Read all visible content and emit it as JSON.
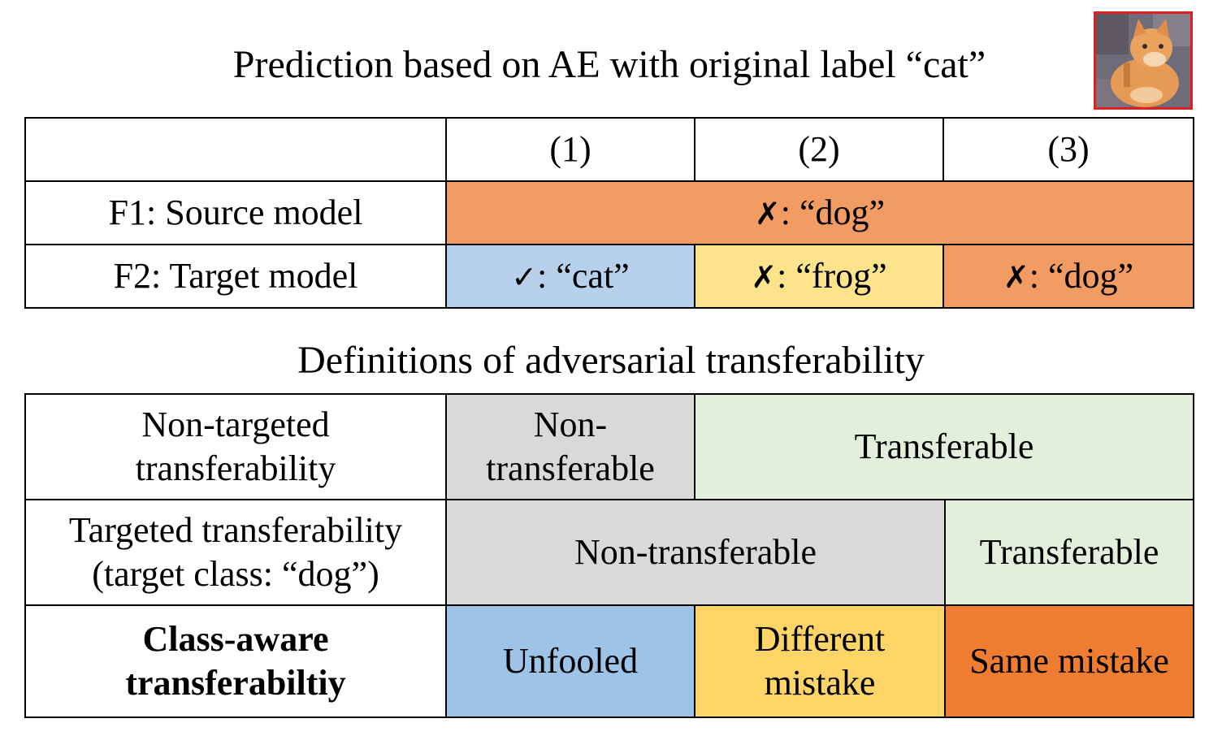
{
  "title_top": "Prediction based on AE with original label “cat”",
  "title_bottom": "Definitions of adversarial transferability",
  "image": {
    "icon": "cat-image",
    "border_color": "#e0201c"
  },
  "prediction_table": {
    "headers": [
      "(1)",
      "(2)",
      "(3)"
    ],
    "rows": [
      {
        "label": "F1: Source model",
        "cells": [
          {
            "mark": "✗",
            "text": ": “dog”",
            "color": "#f29b62"
          }
        ]
      },
      {
        "label": "F2: Target model",
        "cells": [
          {
            "mark": "✓",
            "text": ": “cat”",
            "color": "#b7d1ec"
          },
          {
            "mark": "✗",
            "text": ": “frog”",
            "color": "#fde38c"
          },
          {
            "mark": "✗",
            "text": ": “dog”",
            "color": "#f29b62"
          }
        ]
      }
    ]
  },
  "definitions_table": {
    "rows": [
      {
        "label_lines": [
          "Non-targeted",
          "transferability"
        ],
        "cells": [
          {
            "lines": [
              "Non-",
              "transferable"
            ],
            "color": "#d9d9d9"
          },
          {
            "lines": [
              "Transferable"
            ],
            "color": "#e2efda"
          }
        ]
      },
      {
        "label_lines": [
          "Targeted transferability",
          "(target class: “dog”)"
        ],
        "cells": [
          {
            "lines": [
              "Non-transferable"
            ],
            "color": "#d9d9d9"
          },
          {
            "lines": [
              "Transferable"
            ],
            "color": "#e2efda"
          }
        ]
      },
      {
        "label_lines": [
          "Class-aware",
          "transferabiltiy"
        ],
        "cells": [
          {
            "lines": [
              "Unfooled"
            ],
            "color": "#9dc3e6"
          },
          {
            "lines": [
              "Different",
              "mistake"
            ],
            "color": "#fdd566"
          },
          {
            "lines": [
              "Same mistake"
            ],
            "color": "#ee7d31"
          }
        ]
      }
    ]
  }
}
